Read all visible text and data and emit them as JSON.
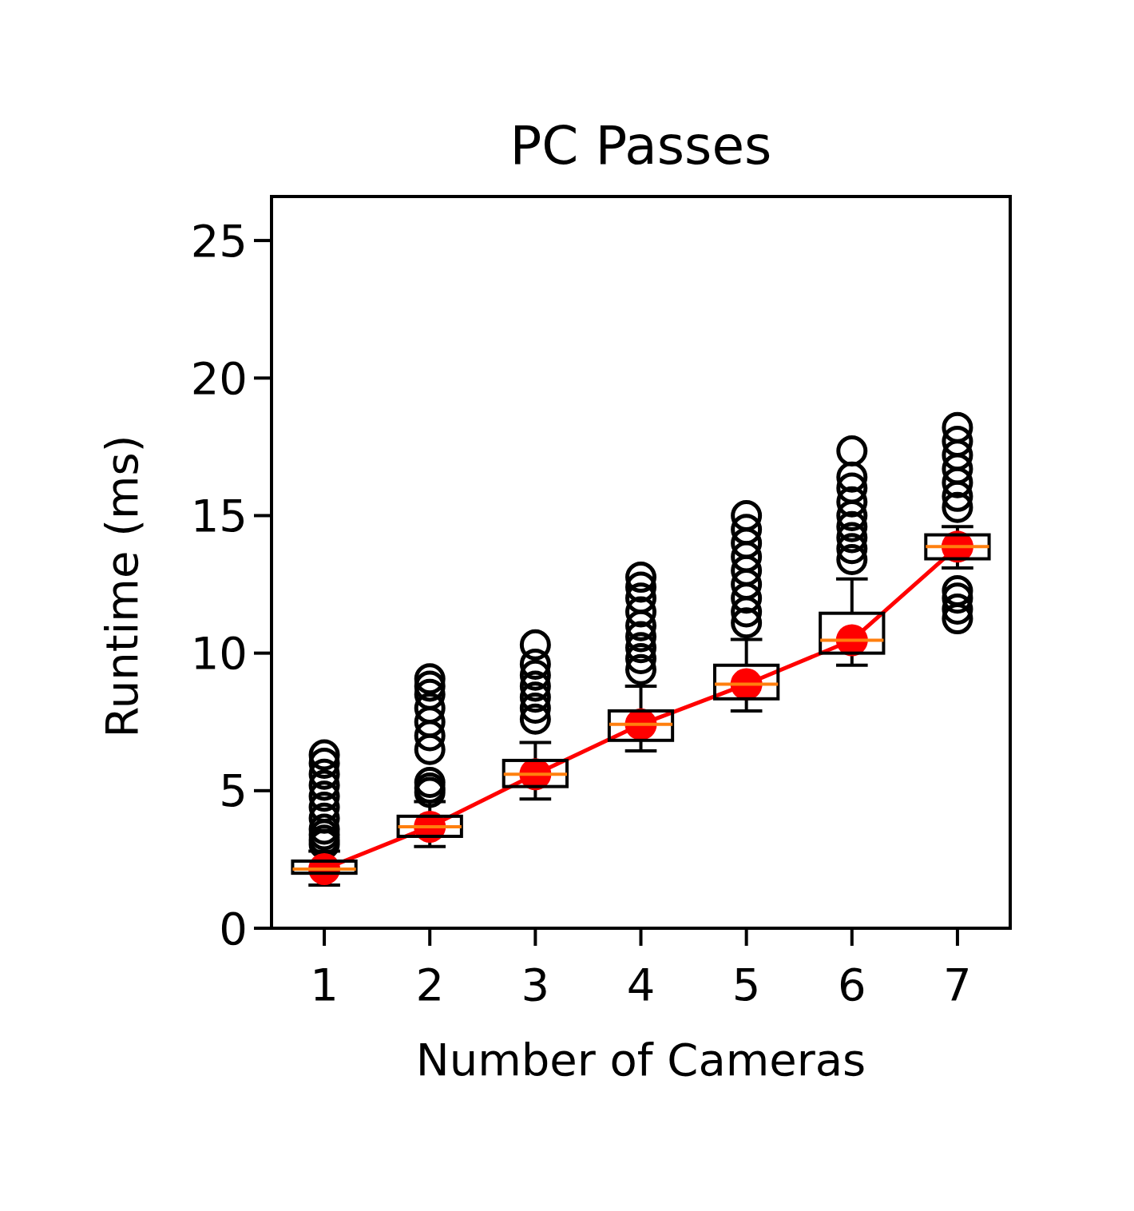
{
  "chart_data": {
    "type": "box",
    "title": "PC Passes",
    "xlabel": "Number of Cameras",
    "ylabel": "Runtime (ms)",
    "categories": [
      "1",
      "2",
      "3",
      "4",
      "5",
      "6",
      "7"
    ],
    "ylim": [
      0,
      26.6
    ],
    "yticks": [
      0,
      5,
      10,
      15,
      20,
      25
    ],
    "grid": false,
    "marker": "circle",
    "series": [
      {
        "type": "box",
        "color": "#000000",
        "boxes": [
          {
            "low": 1.57,
            "q1": 2.0,
            "median": 2.15,
            "q3": 2.44,
            "high": 2.8,
            "outliers": [
              3.05,
              3.2,
              3.4,
              3.6,
              4.0,
              4.4,
              4.8,
              5.2,
              5.6,
              6.0,
              6.3
            ]
          },
          {
            "low": 2.97,
            "q1": 3.34,
            "median": 3.69,
            "q3": 4.07,
            "high": 4.6,
            "outliers": [
              4.94,
              5.1,
              5.3,
              6.5,
              7.0,
              7.5,
              8.0,
              8.5,
              8.8,
              9.07
            ]
          },
          {
            "low": 4.7,
            "q1": 5.15,
            "median": 5.6,
            "q3": 6.1,
            "high": 6.75,
            "outliers": [
              7.6,
              8.0,
              8.4,
              8.8,
              9.2,
              9.6,
              10.3
            ]
          },
          {
            "low": 6.45,
            "q1": 6.83,
            "median": 7.41,
            "q3": 7.9,
            "high": 8.8,
            "outliers": [
              9.4,
              9.8,
              10.2,
              10.6,
              11.0,
              11.5,
              12.0,
              12.4,
              12.76
            ]
          },
          {
            "low": 7.9,
            "q1": 8.34,
            "median": 8.87,
            "q3": 9.56,
            "high": 10.5,
            "outliers": [
              11.1,
              11.5,
              12.0,
              12.5,
              13.0,
              13.5,
              14.0,
              14.5,
              15.0
            ]
          },
          {
            "low": 9.56,
            "q1": 10.0,
            "median": 10.47,
            "q3": 11.45,
            "high": 12.7,
            "outliers": [
              13.4,
              13.8,
              14.2,
              14.6,
              15.0,
              15.5,
              16.0,
              16.4,
              17.35
            ]
          },
          {
            "low": 13.1,
            "q1": 13.43,
            "median": 13.87,
            "q3": 14.3,
            "high": 14.6,
            "outliers": [
              11.25,
              11.6,
              12.0,
              12.27,
              15.3,
              15.7,
              16.2,
              16.7,
              17.2,
              17.7,
              18.2
            ]
          }
        ]
      },
      {
        "type": "line",
        "color": "#ff0000",
        "values": [
          2.15,
          3.69,
          5.6,
          7.41,
          8.87,
          10.47,
          13.87
        ]
      }
    ]
  }
}
